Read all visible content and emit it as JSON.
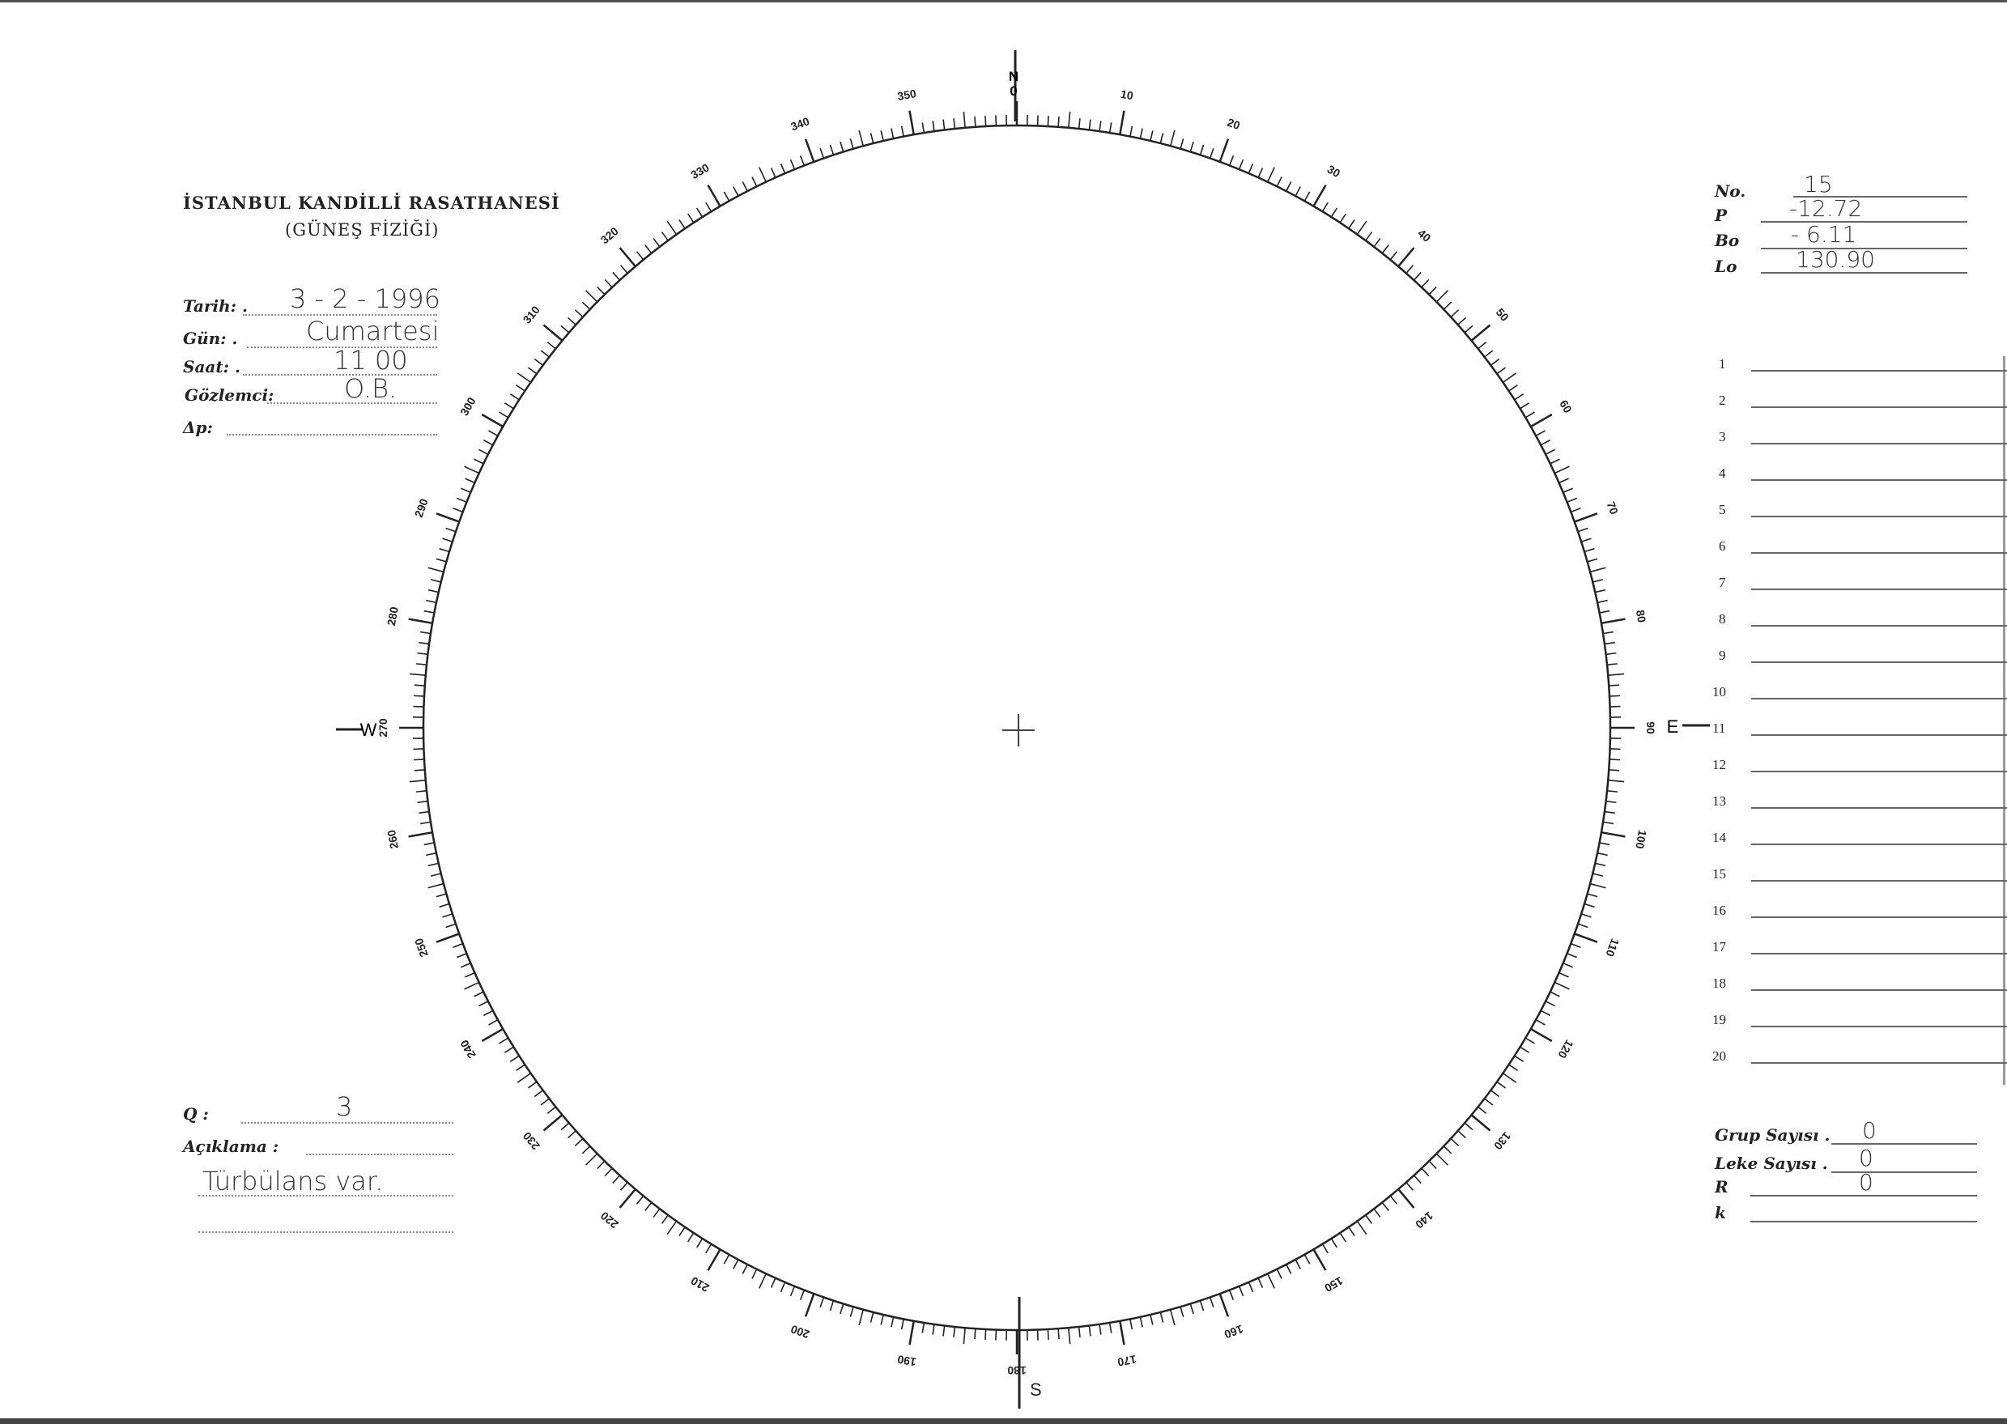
{
  "header": {
    "institution": "İSTANBUL KANDİLLİ RASATHANESİ",
    "department": "(GÜNEŞ FİZİĞİ)"
  },
  "fields": [
    {
      "label": "Tarih: .",
      "value": "3 - 2 - 1996"
    },
    {
      "label": "Gün: .",
      "value": "Cumartesi"
    },
    {
      "label": "Saat: .",
      "value": "11 00"
    },
    {
      "label": "Gözlemci:",
      "value": "O.B."
    },
    {
      "label": "Δp:",
      "value": ""
    }
  ],
  "ephemeris": [
    {
      "label": "No.",
      "value": "15"
    },
    {
      "label": "P",
      "value": "-12.72"
    },
    {
      "label": "Bo",
      "value": "- 6.11"
    },
    {
      "label": "Lo",
      "value": "130.90"
    }
  ],
  "rows": [
    "1",
    "2",
    "3",
    "4",
    "5",
    "6",
    "7",
    "8",
    "9",
    "10",
    "11",
    "12",
    "13",
    "14",
    "15",
    "16",
    "17",
    "18",
    "19",
    "20"
  ],
  "notes": {
    "q_label": "Q :",
    "q_value": "3",
    "desc_label": "Açıklama :",
    "desc_value": "Türbülans var."
  },
  "counts": [
    {
      "label": "Grup Sayısı .",
      "value": "0"
    },
    {
      "label": "Leke Sayısı .",
      "value": "0"
    },
    {
      "label": "R",
      "value": "0"
    },
    {
      "label": "k",
      "value": ""
    }
  ],
  "compass": {
    "north": "N",
    "south": "S",
    "east": "E",
    "west": "W",
    "zero": "0"
  },
  "scale": {
    "labels": [
      "10",
      "20",
      "30",
      "40",
      "50",
      "60",
      "70",
      "80",
      "90",
      "100",
      "110",
      "120",
      "130",
      "140",
      "150",
      "160",
      "170",
      "180",
      "190",
      "200",
      "210",
      "220",
      "230",
      "240",
      "250",
      "260",
      "270",
      "280",
      "290",
      "300",
      "310",
      "320",
      "330",
      "340",
      "350"
    ]
  }
}
